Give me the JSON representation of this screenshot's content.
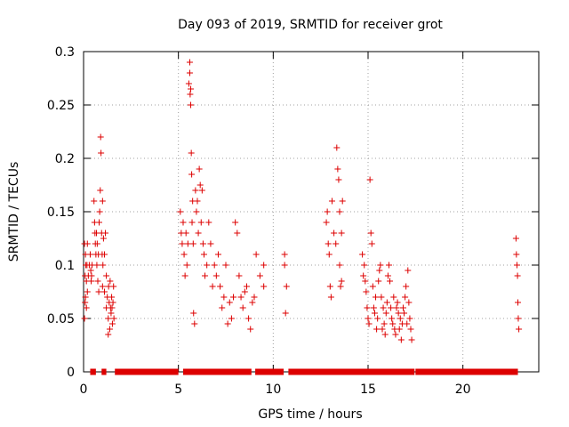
{
  "chart_data": {
    "type": "scatter",
    "title": "Day 093 of 2019, SRMTID for receiver grot",
    "xlabel": "GPS time / hours",
    "ylabel": "SRMTID / TECUs",
    "xlim": [
      0,
      24
    ],
    "ylim": [
      0,
      0.3
    ],
    "xticks": [
      0,
      5,
      10,
      15,
      20
    ],
    "xtick_labels": [
      "0",
      "5",
      "10",
      "15",
      "20"
    ],
    "yticks": [
      0,
      0.05,
      0.1,
      0.15,
      0.2,
      0.25,
      0.3
    ],
    "ytick_labels": [
      "0",
      "0.05",
      "0.1",
      "0.15",
      "0.2",
      "0.25",
      "0.3"
    ],
    "grid": true,
    "marker": "+",
    "series": [
      {
        "name": "SRMTID",
        "color": "#dd0000",
        "x": [
          0.05,
          0.05,
          0.08,
          0.08,
          0.1,
          0.1,
          0.12,
          0.15,
          0.15,
          0.18,
          0.2,
          0.2,
          0.25,
          0.3,
          0.35,
          0.38,
          0.4,
          0.42,
          0.45,
          0.55,
          0.58,
          0.6,
          0.62,
          0.65,
          0.68,
          0.7,
          0.72,
          0.75,
          0.78,
          0.8,
          0.82,
          0.85,
          0.88,
          0.9,
          0.92,
          0.95,
          0.98,
          1.0,
          1.0,
          1.02,
          1.05,
          1.1,
          1.1,
          1.15,
          1.2,
          1.2,
          1.25,
          1.3,
          1.3,
          1.32,
          1.35,
          1.38,
          1.4,
          1.42,
          1.45,
          1.48,
          1.5,
          1.52,
          1.55,
          1.58,
          1.6,
          5.1,
          5.15,
          5.2,
          5.25,
          5.3,
          5.35,
          5.4,
          5.45,
          5.5,
          5.55,
          5.6,
          5.6,
          5.62,
          5.65,
          5.65,
          5.68,
          5.7,
          5.72,
          5.75,
          5.78,
          5.8,
          5.85,
          5.9,
          5.95,
          6.0,
          6.05,
          6.1,
          6.15,
          6.2,
          6.25,
          6.3,
          6.35,
          6.4,
          6.5,
          6.6,
          6.7,
          6.8,
          6.9,
          7.0,
          7.1,
          7.2,
          7.3,
          7.4,
          7.5,
          7.6,
          7.7,
          7.8,
          7.9,
          8.0,
          8.1,
          8.2,
          8.3,
          8.4,
          8.5,
          8.6,
          8.7,
          8.8,
          8.9,
          9.0,
          9.1,
          9.3,
          9.5,
          9.5,
          10.6,
          10.6,
          10.65,
          10.7,
          12.8,
          12.85,
          12.9,
          12.95,
          13.0,
          13.05,
          13.1,
          13.2,
          13.3,
          13.35,
          13.4,
          13.45,
          13.5,
          13.5,
          13.55,
          13.6,
          13.6,
          13.65,
          14.7,
          14.75,
          14.8,
          14.85,
          14.9,
          14.95,
          15.0,
          15.05,
          15.1,
          15.15,
          15.2,
          15.25,
          15.3,
          15.35,
          15.4,
          15.45,
          15.5,
          15.55,
          15.6,
          15.65,
          15.7,
          15.75,
          15.8,
          15.85,
          15.9,
          15.95,
          16.0,
          16.05,
          16.1,
          16.15,
          16.2,
          16.25,
          16.3,
          16.35,
          16.4,
          16.45,
          16.5,
          16.55,
          16.6,
          16.65,
          16.7,
          16.75,
          16.8,
          16.85,
          16.9,
          16.95,
          17.0,
          17.05,
          17.1,
          17.15,
          17.2,
          17.25,
          17.3,
          22.8,
          22.82,
          22.85,
          22.88,
          22.9,
          22.92,
          22.95
        ],
        "y": [
          0.12,
          0.05,
          0.09,
          0.065,
          0.11,
          0.07,
          0.1,
          0.06,
          0.085,
          0.1,
          0.12,
          0.075,
          0.09,
          0.1,
          0.11,
          0.095,
          0.085,
          0.09,
          0.1,
          0.16,
          0.14,
          0.13,
          0.12,
          0.11,
          0.13,
          0.1,
          0.12,
          0.085,
          0.11,
          0.075,
          0.14,
          0.15,
          0.17,
          0.22,
          0.205,
          0.13,
          0.11,
          0.16,
          0.08,
          0.1,
          0.125,
          0.11,
          0.075,
          0.13,
          0.06,
          0.09,
          0.07,
          0.05,
          0.035,
          0.08,
          0.065,
          0.04,
          0.085,
          0.06,
          0.055,
          0.07,
          0.06,
          0.045,
          0.065,
          0.08,
          0.05,
          0.15,
          0.13,
          0.12,
          0.14,
          0.11,
          0.09,
          0.13,
          0.1,
          0.12,
          0.27,
          0.29,
          0.28,
          0.26,
          0.265,
          0.25,
          0.205,
          0.185,
          0.14,
          0.16,
          0.12,
          0.055,
          0.045,
          0.17,
          0.15,
          0.16,
          0.13,
          0.19,
          0.175,
          0.14,
          0.17,
          0.12,
          0.11,
          0.09,
          0.1,
          0.14,
          0.12,
          0.08,
          0.1,
          0.09,
          0.11,
          0.08,
          0.06,
          0.07,
          0.1,
          0.045,
          0.065,
          0.05,
          0.07,
          0.14,
          0.13,
          0.09,
          0.07,
          0.06,
          0.075,
          0.08,
          0.05,
          0.04,
          0.065,
          0.07,
          0.11,
          0.09,
          0.1,
          0.08,
          0.11,
          0.1,
          0.055,
          0.08,
          0.14,
          0.15,
          0.12,
          0.11,
          0.08,
          0.07,
          0.16,
          0.13,
          0.12,
          0.21,
          0.19,
          0.18,
          0.15,
          0.1,
          0.08,
          0.13,
          0.085,
          0.16,
          0.11,
          0.09,
          0.1,
          0.085,
          0.075,
          0.06,
          0.05,
          0.045,
          0.18,
          0.13,
          0.12,
          0.08,
          0.06,
          0.055,
          0.07,
          0.04,
          0.05,
          0.085,
          0.095,
          0.1,
          0.07,
          0.04,
          0.06,
          0.045,
          0.035,
          0.055,
          0.065,
          0.09,
          0.1,
          0.085,
          0.06,
          0.05,
          0.045,
          0.07,
          0.04,
          0.035,
          0.06,
          0.065,
          0.055,
          0.04,
          0.05,
          0.03,
          0.045,
          0.06,
          0.055,
          0.07,
          0.08,
          0.045,
          0.095,
          0.065,
          0.05,
          0.04,
          0.03,
          0.125,
          0.11,
          0.1,
          0.09,
          0.065,
          0.05,
          0.04
        ]
      },
      {
        "name": "zero-baseline",
        "color": "#dd0000",
        "x_ranges": [
          [
            0.35,
            0.65
          ],
          [
            0.95,
            1.2
          ],
          [
            1.65,
            5.0
          ],
          [
            5.25,
            8.85
          ],
          [
            9.05,
            10.55
          ],
          [
            10.8,
            17.45
          ],
          [
            17.5,
            22.9
          ]
        ],
        "y": 0
      }
    ]
  }
}
